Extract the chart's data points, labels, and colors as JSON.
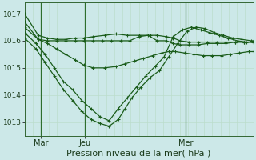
{
  "background_color": "#cce8e8",
  "plot_bg_color": "#cce8e8",
  "grid_color_v": "#bbddcc",
  "grid_color_h": "#bbddcc",
  "line_color": "#1a5c1a",
  "xlabel": "Pression niveau de la mer( hPa )",
  "xlabel_fontsize": 8,
  "ylim": [
    1012.5,
    1017.4
  ],
  "yticks": [
    1013,
    1014,
    1015,
    1016,
    1017
  ],
  "ytick_fontsize": 6.5,
  "xtick_labels": [
    "Mar",
    "Jeu",
    "Mer"
  ],
  "series": [
    {
      "x": [
        0.0,
        0.06,
        0.1,
        0.14,
        0.18,
        0.22,
        0.26,
        0.3,
        0.35,
        0.4,
        0.45,
        0.5,
        0.55,
        0.58,
        0.62,
        0.65,
        0.68,
        0.72,
        0.76,
        0.8,
        0.84,
        0.88,
        0.92,
        0.96,
        1.0
      ],
      "y": [
        1017.0,
        1016.2,
        1016.1,
        1016.05,
        1016.05,
        1016.1,
        1016.1,
        1016.15,
        1016.2,
        1016.25,
        1016.2,
        1016.2,
        1016.2,
        1016.2,
        1016.15,
        1016.1,
        1016.0,
        1015.95,
        1015.95,
        1015.95,
        1015.95,
        1015.95,
        1015.95,
        1015.95,
        1015.95
      ]
    },
    {
      "x": [
        0.0,
        0.06,
        0.1,
        0.14,
        0.18,
        0.22,
        0.26,
        0.3,
        0.34,
        0.38,
        0.42,
        0.46,
        0.5,
        0.54,
        0.58,
        0.62,
        0.65,
        0.68,
        0.72,
        0.76,
        0.8,
        0.84,
        0.88,
        0.92,
        0.96,
        1.0
      ],
      "y": [
        1016.7,
        1016.05,
        1016.0,
        1016.0,
        1016.0,
        1016.0,
        1016.0,
        1016.0,
        1016.0,
        1016.0,
        1016.0,
        1016.0,
        1016.15,
        1016.2,
        1016.0,
        1016.0,
        1015.9,
        1015.85,
        1015.85,
        1015.85,
        1015.9,
        1015.9,
        1015.9,
        1015.95,
        1015.95,
        1015.95
      ]
    },
    {
      "x": [
        0.0,
        0.06,
        0.1,
        0.14,
        0.18,
        0.22,
        0.26,
        0.3,
        0.35,
        0.4,
        0.44,
        0.48,
        0.52,
        0.56,
        0.6,
        0.63,
        0.66,
        0.7,
        0.74,
        0.78,
        0.82,
        0.86,
        0.9,
        0.94,
        0.98,
        1.0
      ],
      "y": [
        1016.5,
        1016.05,
        1015.9,
        1015.7,
        1015.5,
        1015.3,
        1015.1,
        1015.0,
        1015.0,
        1015.05,
        1015.15,
        1015.25,
        1015.35,
        1015.45,
        1015.55,
        1015.6,
        1015.6,
        1015.55,
        1015.5,
        1015.45,
        1015.45,
        1015.45,
        1015.5,
        1015.55,
        1015.6,
        1015.6
      ]
    },
    {
      "x": [
        0.0,
        0.05,
        0.09,
        0.13,
        0.17,
        0.21,
        0.25,
        0.29,
        0.33,
        0.37,
        0.41,
        0.45,
        0.49,
        0.53,
        0.57,
        0.61,
        0.65,
        0.69,
        0.73,
        0.77,
        0.81,
        0.85,
        0.89,
        0.93,
        0.97,
        1.0
      ],
      "y": [
        1016.3,
        1015.9,
        1015.5,
        1015.0,
        1014.5,
        1014.2,
        1013.8,
        1013.5,
        1013.2,
        1013.05,
        1013.5,
        1013.9,
        1014.3,
        1014.7,
        1015.05,
        1015.4,
        1016.15,
        1016.4,
        1016.5,
        1016.4,
        1016.3,
        1016.2,
        1016.1,
        1016.0,
        1015.95,
        1015.95
      ]
    },
    {
      "x": [
        0.0,
        0.05,
        0.09,
        0.13,
        0.17,
        0.21,
        0.25,
        0.29,
        0.33,
        0.37,
        0.41,
        0.44,
        0.47,
        0.51,
        0.55,
        0.59,
        0.63,
        0.67,
        0.71,
        0.75,
        0.79,
        0.83,
        0.87,
        0.91,
        0.95,
        0.99,
        1.0
      ],
      "y": [
        1016.1,
        1015.7,
        1015.2,
        1014.7,
        1014.2,
        1013.8,
        1013.4,
        1013.1,
        1012.95,
        1012.85,
        1013.1,
        1013.5,
        1013.9,
        1014.3,
        1014.65,
        1014.9,
        1015.4,
        1015.9,
        1016.35,
        1016.5,
        1016.45,
        1016.3,
        1016.2,
        1016.1,
        1016.05,
        1016.0,
        1016.0
      ]
    }
  ],
  "vlines": [
    0.072,
    0.265,
    0.705
  ],
  "xtick_pos": [
    0.072,
    0.265,
    0.705
  ],
  "n_vgrid": 28,
  "n_hgrid": 5
}
